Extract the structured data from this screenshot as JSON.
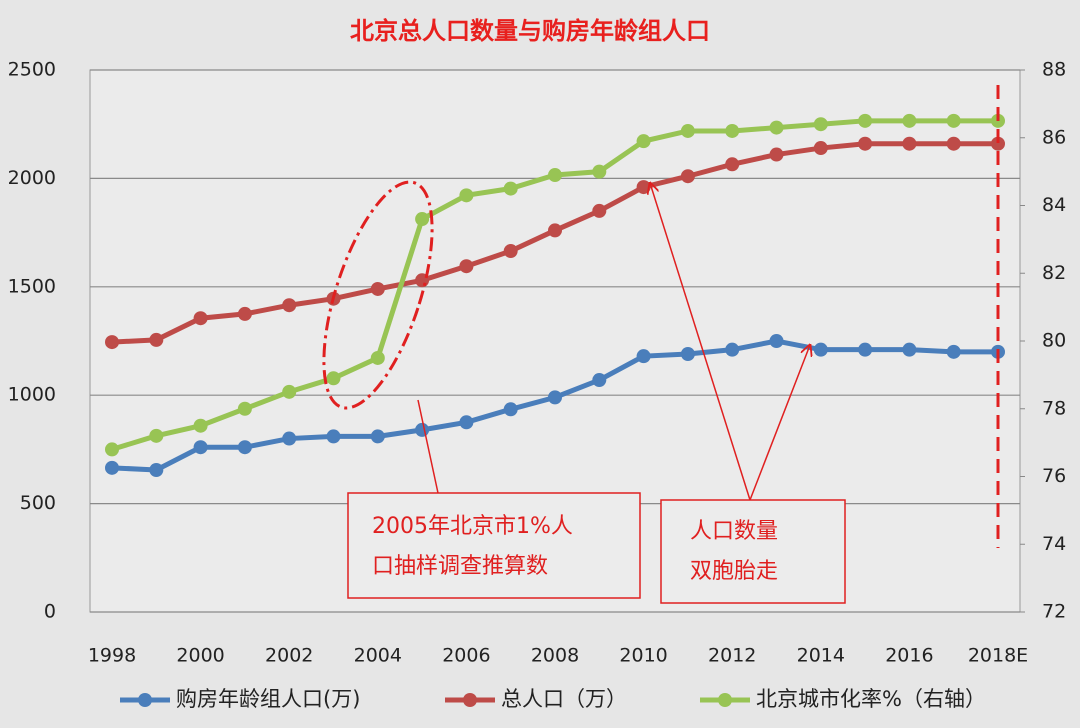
{
  "chart_data": {
    "type": "line",
    "title": "北京总人口数量与购房年龄组人口",
    "categories": [
      "1998",
      null,
      "2000",
      null,
      "2002",
      null,
      "2004",
      null,
      "2006",
      null,
      "2008",
      null,
      "2010",
      null,
      "2012",
      null,
      "2014",
      null,
      "2016",
      null,
      "2018E"
    ],
    "series": [
      {
        "name": "购房年龄组人口(万)",
        "color": "#4a7ebb",
        "values": [
          665,
          655,
          760,
          760,
          800,
          810,
          810,
          840,
          875,
          935,
          990,
          1070,
          1180,
          1190,
          1210,
          1250,
          1210,
          1210,
          1210,
          1200,
          1200
        ]
      },
      {
        "name": "总人口（万）",
        "color": "#be4b48",
        "values": [
          1245,
          1255,
          1355,
          1375,
          1415,
          1445,
          1490,
          1530,
          1595,
          1665,
          1760,
          1850,
          1960,
          2010,
          2065,
          2110,
          2140,
          2160,
          2160,
          2160,
          2160
        ]
      },
      {
        "name": "北京城市化率%（右轴）",
        "color": "#98c454",
        "axis": "y2",
        "values": [
          76.8,
          77.2,
          77.5,
          78.0,
          78.5,
          78.9,
          79.5,
          83.6,
          84.3,
          84.5,
          84.9,
          85.0,
          85.9,
          86.2,
          86.2,
          86.3,
          86.4,
          86.5,
          86.5,
          86.5,
          86.5
        ]
      }
    ],
    "ylim": [
      0,
      2500
    ],
    "yticks": [
      0,
      500,
      1000,
      1500,
      2000,
      2500
    ],
    "y2lim": [
      72,
      88
    ],
    "y2ticks": [
      72,
      74,
      76,
      78,
      80,
      82,
      84,
      86,
      88
    ],
    "grid": true,
    "annotations": [
      {
        "lines": [
          "2005年北京市1%人",
          "口抽样调查推算数"
        ]
      },
      {
        "lines": [
          "人口数量",
          "双胞胎走"
        ]
      }
    ]
  }
}
